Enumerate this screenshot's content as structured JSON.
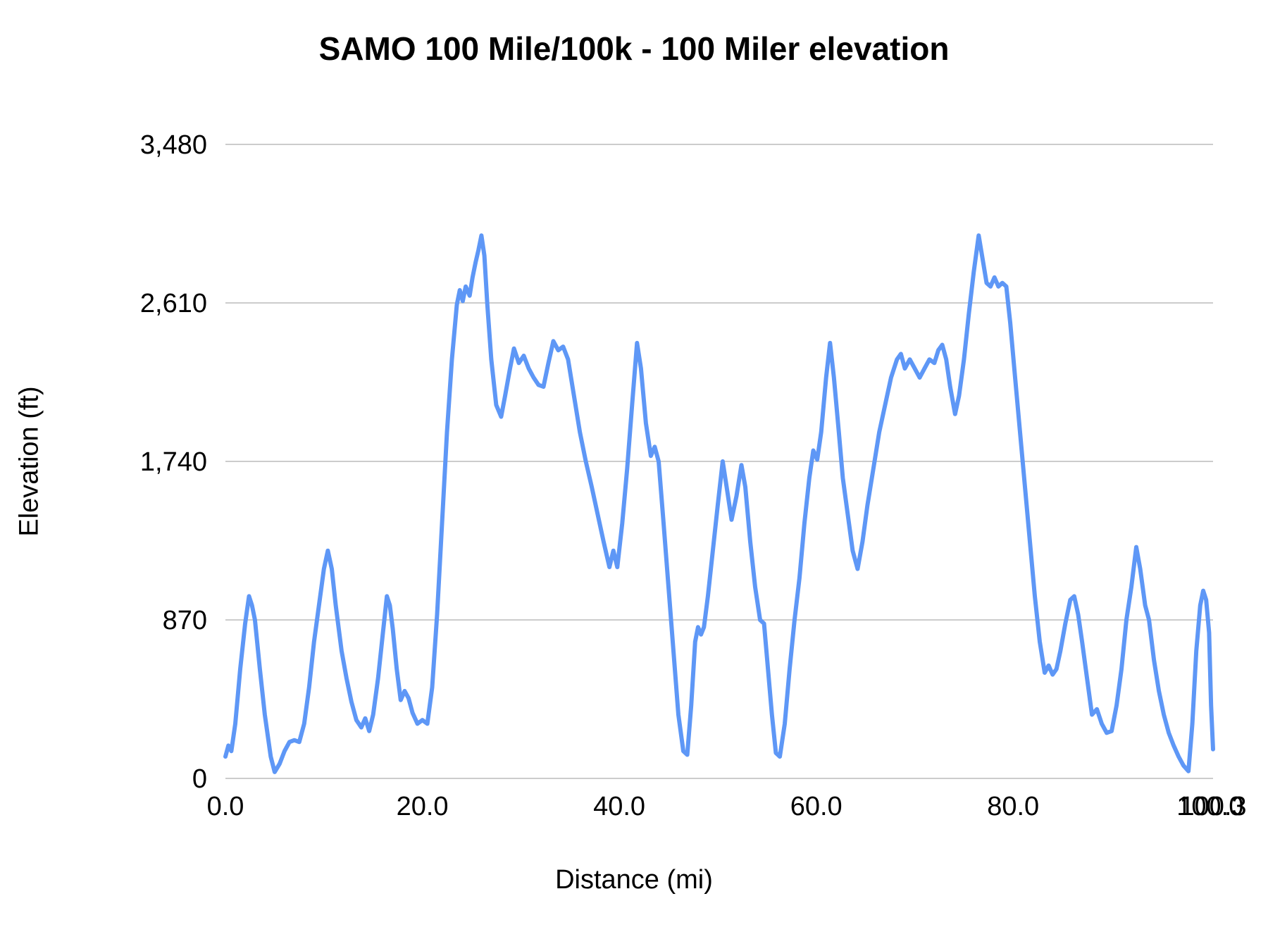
{
  "chart_data": {
    "type": "line",
    "title": "SAMO 100 Mile/100k - 100 Miler elevation",
    "xlabel": "Distance (mi)",
    "ylabel": "Elevation (ft)",
    "xlim": [
      0,
      100.3
    ],
    "ylim": [
      0,
      3480
    ],
    "grid": "horizontal",
    "legend": "none",
    "line_color": "#5e97f6",
    "gridline_color": "#cccccc",
    "tick_text_color": "#000000",
    "y_ticks": [
      {
        "value": 0,
        "label": "0"
      },
      {
        "value": 870,
        "label": "870"
      },
      {
        "value": 1740,
        "label": "1,740"
      },
      {
        "value": 2610,
        "label": "2,610"
      },
      {
        "value": 3480,
        "label": "3,480"
      }
    ],
    "x_ticks": [
      {
        "value": 0,
        "label": "0.0"
      },
      {
        "value": 20,
        "label": "20.0"
      },
      {
        "value": 40,
        "label": "40.0"
      },
      {
        "value": 60,
        "label": "60.0"
      },
      {
        "value": 80,
        "label": "80.0"
      },
      {
        "value": 100,
        "label": "100.0"
      },
      {
        "value": 100.3,
        "label": "100.3"
      }
    ],
    "series": [
      {
        "name": "elevation",
        "points": [
          [
            0.0,
            120
          ],
          [
            0.3,
            180
          ],
          [
            0.6,
            150
          ],
          [
            1.0,
            300
          ],
          [
            1.5,
            600
          ],
          [
            2.0,
            850
          ],
          [
            2.4,
            1000
          ],
          [
            2.7,
            950
          ],
          [
            3.0,
            870
          ],
          [
            3.5,
            600
          ],
          [
            4.0,
            350
          ],
          [
            4.6,
            120
          ],
          [
            5.0,
            35
          ],
          [
            5.5,
            80
          ],
          [
            6.0,
            150
          ],
          [
            6.5,
            200
          ],
          [
            7.0,
            210
          ],
          [
            7.5,
            200
          ],
          [
            8.0,
            300
          ],
          [
            8.5,
            500
          ],
          [
            9.0,
            750
          ],
          [
            9.5,
            950
          ],
          [
            10.0,
            1150
          ],
          [
            10.4,
            1250
          ],
          [
            10.8,
            1150
          ],
          [
            11.2,
            950
          ],
          [
            11.8,
            700
          ],
          [
            12.3,
            550
          ],
          [
            12.8,
            420
          ],
          [
            13.3,
            320
          ],
          [
            13.8,
            280
          ],
          [
            14.2,
            330
          ],
          [
            14.6,
            260
          ],
          [
            15.0,
            350
          ],
          [
            15.5,
            550
          ],
          [
            16.0,
            800
          ],
          [
            16.4,
            1000
          ],
          [
            16.7,
            950
          ],
          [
            17.0,
            820
          ],
          [
            17.4,
            600
          ],
          [
            17.8,
            430
          ],
          [
            18.2,
            480
          ],
          [
            18.6,
            440
          ],
          [
            19.0,
            360
          ],
          [
            19.5,
            300
          ],
          [
            20.0,
            320
          ],
          [
            20.5,
            300
          ],
          [
            21.0,
            500
          ],
          [
            21.5,
            900
          ],
          [
            22.0,
            1400
          ],
          [
            22.5,
            1900
          ],
          [
            23.0,
            2300
          ],
          [
            23.5,
            2600
          ],
          [
            23.8,
            2680
          ],
          [
            24.1,
            2620
          ],
          [
            24.4,
            2700
          ],
          [
            24.8,
            2650
          ],
          [
            25.1,
            2750
          ],
          [
            25.4,
            2830
          ],
          [
            25.7,
            2900
          ],
          [
            26.0,
            2980
          ],
          [
            26.3,
            2870
          ],
          [
            26.6,
            2600
          ],
          [
            27.0,
            2300
          ],
          [
            27.5,
            2050
          ],
          [
            28.0,
            1985
          ],
          [
            28.4,
            2100
          ],
          [
            28.9,
            2250
          ],
          [
            29.3,
            2360
          ],
          [
            29.8,
            2280
          ],
          [
            30.3,
            2320
          ],
          [
            30.8,
            2250
          ],
          [
            31.3,
            2200
          ],
          [
            31.8,
            2160
          ],
          [
            32.3,
            2150
          ],
          [
            32.8,
            2280
          ],
          [
            33.3,
            2400
          ],
          [
            33.8,
            2350
          ],
          [
            34.3,
            2370
          ],
          [
            34.8,
            2300
          ],
          [
            35.4,
            2100
          ],
          [
            36.0,
            1900
          ],
          [
            36.6,
            1740
          ],
          [
            37.2,
            1600
          ],
          [
            37.8,
            1450
          ],
          [
            38.4,
            1300
          ],
          [
            39.0,
            1160
          ],
          [
            39.4,
            1250
          ],
          [
            39.8,
            1160
          ],
          [
            40.3,
            1400
          ],
          [
            40.8,
            1700
          ],
          [
            41.3,
            2050
          ],
          [
            41.8,
            2390
          ],
          [
            42.2,
            2250
          ],
          [
            42.7,
            1950
          ],
          [
            43.2,
            1770
          ],
          [
            43.6,
            1820
          ],
          [
            44.0,
            1740
          ],
          [
            44.5,
            1400
          ],
          [
            45.0,
            1050
          ],
          [
            45.5,
            700
          ],
          [
            46.0,
            350
          ],
          [
            46.5,
            150
          ],
          [
            46.9,
            130
          ],
          [
            47.3,
            400
          ],
          [
            47.7,
            750
          ],
          [
            48.0,
            830
          ],
          [
            48.3,
            790
          ],
          [
            48.6,
            830
          ],
          [
            49.0,
            1000
          ],
          [
            49.5,
            1250
          ],
          [
            50.0,
            1500
          ],
          [
            50.5,
            1740
          ],
          [
            50.9,
            1600
          ],
          [
            51.4,
            1420
          ],
          [
            51.9,
            1550
          ],
          [
            52.4,
            1720
          ],
          [
            52.8,
            1600
          ],
          [
            53.3,
            1300
          ],
          [
            53.8,
            1050
          ],
          [
            54.3,
            870
          ],
          [
            54.7,
            850
          ],
          [
            55.1,
            600
          ],
          [
            55.5,
            350
          ],
          [
            55.9,
            140
          ],
          [
            56.3,
            120
          ],
          [
            56.8,
            300
          ],
          [
            57.3,
            600
          ],
          [
            57.8,
            870
          ],
          [
            58.3,
            1100
          ],
          [
            58.8,
            1400
          ],
          [
            59.3,
            1650
          ],
          [
            59.7,
            1800
          ],
          [
            60.1,
            1750
          ],
          [
            60.5,
            1900
          ],
          [
            61.0,
            2200
          ],
          [
            61.4,
            2390
          ],
          [
            61.8,
            2200
          ],
          [
            62.3,
            1900
          ],
          [
            62.7,
            1650
          ],
          [
            63.2,
            1450
          ],
          [
            63.7,
            1250
          ],
          [
            64.2,
            1150
          ],
          [
            64.7,
            1300
          ],
          [
            65.2,
            1500
          ],
          [
            65.8,
            1700
          ],
          [
            66.4,
            1900
          ],
          [
            67.0,
            2050
          ],
          [
            67.6,
            2200
          ],
          [
            68.2,
            2300
          ],
          [
            68.6,
            2330
          ],
          [
            69.0,
            2250
          ],
          [
            69.5,
            2300
          ],
          [
            70.0,
            2250
          ],
          [
            70.5,
            2200
          ],
          [
            71.0,
            2250
          ],
          [
            71.5,
            2300
          ],
          [
            72.0,
            2280
          ],
          [
            72.4,
            2350
          ],
          [
            72.8,
            2380
          ],
          [
            73.2,
            2300
          ],
          [
            73.6,
            2150
          ],
          [
            74.1,
            2000
          ],
          [
            74.5,
            2100
          ],
          [
            75.0,
            2300
          ],
          [
            75.5,
            2550
          ],
          [
            76.0,
            2780
          ],
          [
            76.5,
            2980
          ],
          [
            76.9,
            2850
          ],
          [
            77.3,
            2720
          ],
          [
            77.7,
            2700
          ],
          [
            78.1,
            2750
          ],
          [
            78.5,
            2700
          ],
          [
            78.9,
            2720
          ],
          [
            79.3,
            2700
          ],
          [
            79.7,
            2500
          ],
          [
            80.2,
            2200
          ],
          [
            80.7,
            1900
          ],
          [
            81.2,
            1600
          ],
          [
            81.7,
            1300
          ],
          [
            82.2,
            1000
          ],
          [
            82.7,
            750
          ],
          [
            83.2,
            580
          ],
          [
            83.6,
            620
          ],
          [
            84.0,
            570
          ],
          [
            84.4,
            600
          ],
          [
            84.8,
            700
          ],
          [
            85.3,
            850
          ],
          [
            85.8,
            980
          ],
          [
            86.2,
            1000
          ],
          [
            86.6,
            900
          ],
          [
            87.0,
            750
          ],
          [
            87.5,
            550
          ],
          [
            88.0,
            350
          ],
          [
            88.5,
            380
          ],
          [
            89.0,
            300
          ],
          [
            89.5,
            250
          ],
          [
            90.0,
            260
          ],
          [
            90.5,
            400
          ],
          [
            91.0,
            600
          ],
          [
            91.5,
            870
          ],
          [
            92.0,
            1050
          ],
          [
            92.5,
            1270
          ],
          [
            92.9,
            1150
          ],
          [
            93.4,
            950
          ],
          [
            93.8,
            870
          ],
          [
            94.3,
            650
          ],
          [
            94.8,
            480
          ],
          [
            95.3,
            350
          ],
          [
            95.8,
            250
          ],
          [
            96.3,
            180
          ],
          [
            96.8,
            120
          ],
          [
            97.3,
            70
          ],
          [
            97.8,
            40
          ],
          [
            98.2,
            300
          ],
          [
            98.6,
            700
          ],
          [
            99.0,
            950
          ],
          [
            99.3,
            1030
          ],
          [
            99.6,
            980
          ],
          [
            99.9,
            800
          ],
          [
            100.1,
            400
          ],
          [
            100.3,
            160
          ]
        ]
      }
    ]
  }
}
